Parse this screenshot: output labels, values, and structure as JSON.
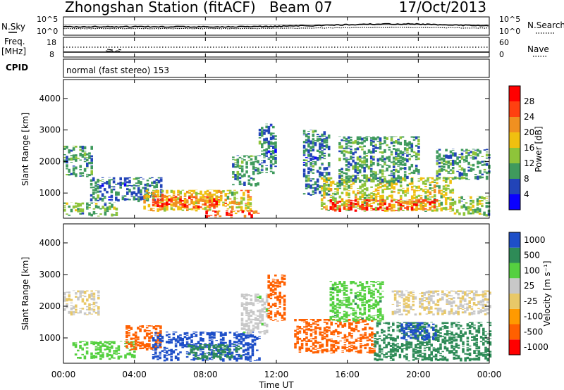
{
  "header": {
    "title": "Zhongshan Station (fitACF)",
    "beam": "Beam 07",
    "date": "17/Oct/2013"
  },
  "nsky_panel": {
    "left_label": "N.Sky",
    "right_label": "N.Search",
    "left_ticks": [
      "10^5",
      "10^0"
    ],
    "right_ticks": [
      "10^5",
      "10^0"
    ]
  },
  "freq_panel": {
    "left_label_1": "Freq.",
    "left_label_2": "[MHz]",
    "right_label": "Nave",
    "left_ticks": [
      "18",
      "8"
    ],
    "right_ticks": [
      "60",
      "0"
    ]
  },
  "cpid_panel": {
    "label": "CPID",
    "text": "normal (fast stereo) 153"
  },
  "colors": {
    "power_scale": [
      "#0a00ff",
      "#2244b8",
      "#3f9a5d",
      "#8ec43a",
      "#f0c010",
      "#f09020",
      "#ff4010",
      "#ff0000"
    ],
    "velocity_scale": [
      "#ff0000",
      "#ff6000",
      "#ff9a00",
      "#e8c868",
      "#c8c8c8",
      "#55d040",
      "#2e8b57",
      "#1e4fc8"
    ]
  },
  "chart_data": [
    {
      "type": "heatmap",
      "name": "power",
      "ylabel": "Slant Range [km]",
      "yticks": [
        1000,
        2000,
        3000,
        4000
      ],
      "ylim": [
        200,
        4600
      ],
      "xlim": [
        0,
        24
      ],
      "colorbar": {
        "label": "Power [dB]",
        "range": [
          0,
          32
        ],
        "tick_labels": [
          "28",
          "24",
          "20",
          "16",
          "12",
          "8",
          "4"
        ]
      },
      "regions": [
        {
          "t0": 0.0,
          "t1": 1.6,
          "r0": 1500,
          "r1": 2500,
          "v": 10
        },
        {
          "t0": 0.0,
          "t1": 3.0,
          "r0": 250,
          "r1": 700,
          "v": 12
        },
        {
          "t0": 1.5,
          "t1": 5.5,
          "r0": 700,
          "r1": 1500,
          "v": 8
        },
        {
          "t0": 4.5,
          "t1": 10.5,
          "r0": 400,
          "r1": 1100,
          "v": 18
        },
        {
          "t0": 5.0,
          "t1": 9.0,
          "r0": 500,
          "r1": 900,
          "v": 24
        },
        {
          "t0": 8.0,
          "t1": 11.0,
          "r0": 200,
          "r1": 450,
          "v": 26
        },
        {
          "t0": 9.5,
          "t1": 11.0,
          "r0": 1200,
          "r1": 2200,
          "v": 10
        },
        {
          "t0": 11.0,
          "t1": 12.0,
          "r0": 1600,
          "r1": 3200,
          "v": 8
        },
        {
          "t0": 13.5,
          "t1": 15.0,
          "r0": 900,
          "r1": 3000,
          "v": 8
        },
        {
          "t0": 14.5,
          "t1": 22.0,
          "r0": 400,
          "r1": 1500,
          "v": 16
        },
        {
          "t0": 15.0,
          "t1": 21.0,
          "r0": 400,
          "r1": 800,
          "v": 26
        },
        {
          "t0": 15.5,
          "t1": 20.0,
          "r0": 1300,
          "r1": 2800,
          "v": 10
        },
        {
          "t0": 21.0,
          "t1": 24.0,
          "r0": 1400,
          "r1": 2400,
          "v": 10
        },
        {
          "t0": 22.0,
          "t1": 24.0,
          "r0": 250,
          "r1": 900,
          "v": 14
        }
      ]
    },
    {
      "type": "heatmap",
      "name": "velocity",
      "ylabel": "Slant Range [km]",
      "yticks": [
        1000,
        2000,
        3000,
        4000
      ],
      "ylim": [
        200,
        4600
      ],
      "xlim": [
        0,
        24
      ],
      "xticks": [
        "00:00",
        "04:00",
        "08:00",
        "12:00",
        "16:00",
        "20:00",
        "00:00"
      ],
      "xlabel": "Time UT",
      "colorbar": {
        "label": "Velocity [m s⁻¹]",
        "tick_labels": [
          "1000",
          "500",
          "100",
          "25",
          "-25",
          "-100",
          "-500",
          "-1000"
        ]
      },
      "regions": [
        {
          "t0": 0.0,
          "t1": 2.0,
          "r0": 1700,
          "r1": 2500,
          "v": 0
        },
        {
          "t0": 0.5,
          "t1": 4.0,
          "r0": 300,
          "r1": 900,
          "v": 60
        },
        {
          "t0": 3.5,
          "t1": 5.5,
          "r0": 600,
          "r1": 1400,
          "v": -200
        },
        {
          "t0": 5.0,
          "t1": 11.0,
          "r0": 250,
          "r1": 1200,
          "v": 700
        },
        {
          "t0": 7.0,
          "t1": 10.0,
          "r0": 300,
          "r1": 800,
          "v": 200
        },
        {
          "t0": 10.0,
          "t1": 11.5,
          "r0": 1100,
          "r1": 2400,
          "v": 20
        },
        {
          "t0": 11.5,
          "t1": 12.5,
          "r0": 1500,
          "r1": 3000,
          "v": -150
        },
        {
          "t0": 13.0,
          "t1": 17.5,
          "r0": 500,
          "r1": 1600,
          "v": -300
        },
        {
          "t0": 15.0,
          "t1": 18.0,
          "r0": 1500,
          "r1": 2800,
          "v": 80
        },
        {
          "t0": 17.5,
          "t1": 24.0,
          "r0": 250,
          "r1": 1500,
          "v": 150
        },
        {
          "t0": 19.0,
          "t1": 21.0,
          "r0": 900,
          "r1": 1500,
          "v": 700
        },
        {
          "t0": 18.5,
          "t1": 24.0,
          "r0": 1700,
          "r1": 2500,
          "v": 0
        }
      ]
    }
  ]
}
